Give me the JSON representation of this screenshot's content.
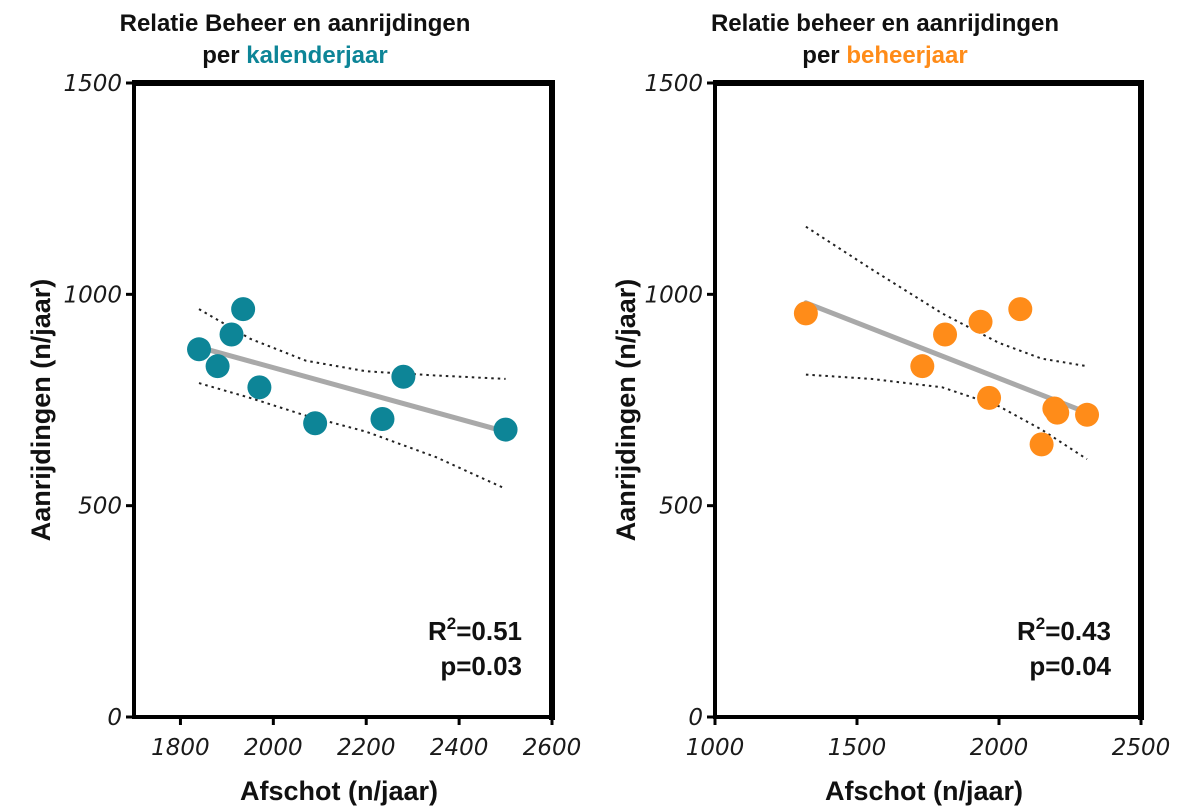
{
  "colors": {
    "teal": "#0d8597",
    "orange": "#ff8c19",
    "fit_line": "#a9a9a9",
    "axis": "#000000"
  },
  "chart_data": [
    {
      "type": "scatter",
      "title_line1": "Relatie Beheer en aanrijdingen",
      "title_line2_prefix": "per",
      "title_line2_highlight": "kalenderjaar",
      "xlabel": "Afschot (n/jaar)",
      "ylabel": "Aanrijdingen (n/jaar)",
      "xlim": [
        1700,
        2600
      ],
      "ylim": [
        0,
        1500
      ],
      "xticks": [
        "1800",
        "2000",
        "2200",
        "2400",
        "2600"
      ],
      "xtick_values": [
        1800,
        2000,
        2200,
        2400,
        2600
      ],
      "yticks": [
        "0",
        "500",
        "1000",
        "1500"
      ],
      "ytick_values": [
        0,
        500,
        1000,
        1500
      ],
      "grid": false,
      "color": "#0d8597",
      "points": [
        {
          "x": 1840,
          "y": 870
        },
        {
          "x": 1880,
          "y": 830
        },
        {
          "x": 1910,
          "y": 905
        },
        {
          "x": 1935,
          "y": 965
        },
        {
          "x": 1970,
          "y": 780
        },
        {
          "x": 2090,
          "y": 695
        },
        {
          "x": 2235,
          "y": 705
        },
        {
          "x": 2280,
          "y": 805
        },
        {
          "x": 2500,
          "y": 680
        }
      ],
      "fit_line": [
        {
          "x": 1840,
          "y": 875
        },
        {
          "x": 2500,
          "y": 675
        }
      ],
      "ci_upper": [
        {
          "x": 1840,
          "y": 965
        },
        {
          "x": 1950,
          "y": 895
        },
        {
          "x": 2070,
          "y": 843
        },
        {
          "x": 2200,
          "y": 818
        },
        {
          "x": 2350,
          "y": 808
        },
        {
          "x": 2500,
          "y": 800
        }
      ],
      "ci_lower": [
        {
          "x": 1840,
          "y": 790
        },
        {
          "x": 1950,
          "y": 755
        },
        {
          "x": 2070,
          "y": 713
        },
        {
          "x": 2200,
          "y": 675
        },
        {
          "x": 2350,
          "y": 615
        },
        {
          "x": 2500,
          "y": 540
        }
      ],
      "r2_label": "R",
      "r2_sup": "2",
      "r2_value": "=0.51",
      "p_value": "p=0.03"
    },
    {
      "type": "scatter",
      "title_line1": "Relatie beheer en aanrijdingen",
      "title_line2_prefix": "per",
      "title_line2_highlight": "beheerjaar",
      "xlabel": "Afschot (n/jaar)",
      "ylabel": "Aanrijdingen (n/jaar)",
      "xlim": [
        1000,
        2500
      ],
      "ylim": [
        0,
        1500
      ],
      "xticks": [
        "1000",
        "1500",
        "2000",
        "2500"
      ],
      "xtick_values": [
        1000,
        1500,
        2000,
        2500
      ],
      "yticks": [
        "0",
        "500",
        "1000",
        "1500"
      ],
      "ytick_values": [
        0,
        500,
        1000,
        1500
      ],
      "grid": false,
      "color": "#ff8c19",
      "points": [
        {
          "x": 1320,
          "y": 955
        },
        {
          "x": 1730,
          "y": 830
        },
        {
          "x": 1810,
          "y": 905
        },
        {
          "x": 1935,
          "y": 935
        },
        {
          "x": 1965,
          "y": 755
        },
        {
          "x": 2075,
          "y": 965
        },
        {
          "x": 2150,
          "y": 645
        },
        {
          "x": 2195,
          "y": 730
        },
        {
          "x": 2205,
          "y": 720
        },
        {
          "x": 2310,
          "y": 715
        }
      ],
      "fit_line": [
        {
          "x": 1320,
          "y": 980
        },
        {
          "x": 2310,
          "y": 720
        }
      ],
      "ci_upper": [
        {
          "x": 1320,
          "y": 1160
        },
        {
          "x": 1550,
          "y": 1060
        },
        {
          "x": 1800,
          "y": 955
        },
        {
          "x": 2000,
          "y": 885
        },
        {
          "x": 2150,
          "y": 848
        },
        {
          "x": 2310,
          "y": 830
        }
      ],
      "ci_lower": [
        {
          "x": 1320,
          "y": 810
        },
        {
          "x": 1550,
          "y": 800
        },
        {
          "x": 1800,
          "y": 780
        },
        {
          "x": 2000,
          "y": 735
        },
        {
          "x": 2150,
          "y": 680
        },
        {
          "x": 2310,
          "y": 610
        }
      ],
      "r2_label": "R",
      "r2_sup": "2",
      "r2_value": "=0.43",
      "p_value": "p=0.04"
    }
  ]
}
